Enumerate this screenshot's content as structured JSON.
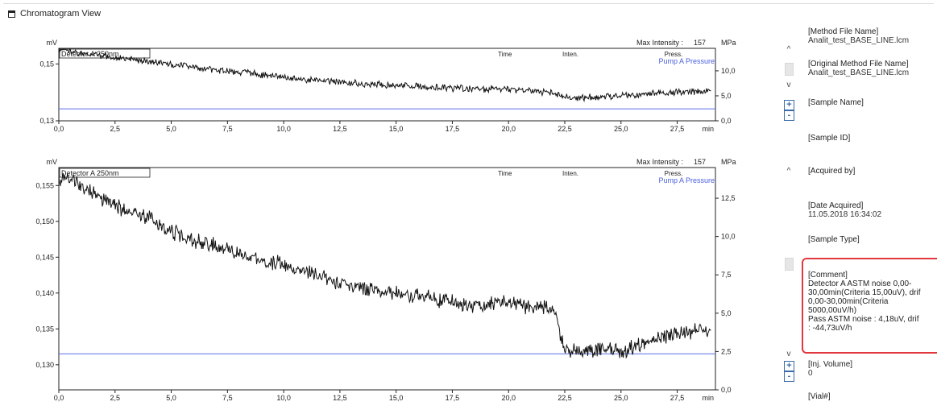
{
  "window": {
    "title": "Chromatogram View"
  },
  "chart_data": [
    {
      "type": "line",
      "legend": {
        "detector": "Detector A 250nm",
        "pump": "Pump A Pressure",
        "columns": [
          "Time",
          "Inten.",
          "Press."
        ]
      },
      "max_intensity_label": "Max Intensity :",
      "max_intensity_value": "157",
      "ylabel": "mV",
      "y2label": "MPa",
      "xlabel": "min",
      "xlim": [
        0,
        29.2
      ],
      "ylim": [
        0.13,
        0.1555
      ],
      "y2lim": [
        0,
        14.5
      ],
      "x_ticks": [
        "0,0",
        "2,5",
        "5,0",
        "7,5",
        "10,0",
        "12,5",
        "15,0",
        "17,5",
        "20,0",
        "22,5",
        "25,0",
        "27,5"
      ],
      "y_ticks": [
        "0,13",
        "0,15"
      ],
      "y_tick_values": [
        0.13,
        0.15
      ],
      "y2_ticks": [
        "0,0",
        "5,0",
        "10,0"
      ],
      "y2_tick_values": [
        0,
        5,
        10
      ],
      "series": [
        {
          "name": "Detector A 250nm",
          "color": "#111111",
          "x": [
            0,
            1,
            2,
            3,
            4,
            5,
            6,
            7,
            8,
            9,
            10,
            11,
            12,
            13,
            14,
            15,
            16,
            17,
            18,
            19,
            20,
            21,
            22,
            22.5,
            23,
            24,
            25,
            26,
            27,
            28,
            29
          ],
          "y": [
            0.155,
            0.1538,
            0.1527,
            0.1518,
            0.1507,
            0.1498,
            0.1488,
            0.148,
            0.1472,
            0.1462,
            0.1452,
            0.1445,
            0.144,
            0.1434,
            0.1428,
            0.1424,
            0.142,
            0.1417,
            0.1414,
            0.1412,
            0.141,
            0.1405,
            0.1399,
            0.1385,
            0.138,
            0.1384,
            0.1388,
            0.1393,
            0.1398,
            0.1402,
            0.1407
          ]
        },
        {
          "name": "Pump A Pressure",
          "color": "#5a6ee6",
          "x": [
            0,
            29.2
          ],
          "y2": [
            2.4,
            2.4
          ]
        }
      ]
    },
    {
      "type": "line",
      "legend": {
        "detector": "Detector A 250nm",
        "pump": "Pump A Pressure",
        "columns": [
          "Time",
          "Inten.",
          "Press."
        ]
      },
      "max_intensity_label": "Max Intensity :",
      "max_intensity_value": "157",
      "ylabel": "mV",
      "y2label": "MPa",
      "xlabel": "min",
      "xlim": [
        0,
        29.2
      ],
      "ylim": [
        0.1265,
        0.1575
      ],
      "y2lim": [
        0,
        14.5
      ],
      "x_ticks": [
        "0,0",
        "2,5",
        "5,0",
        "7,5",
        "10,0",
        "12,5",
        "15,0",
        "17,5",
        "20,0",
        "22,5",
        "25,0",
        "27,5"
      ],
      "y_ticks": [
        "0,130",
        "0,135",
        "0,140",
        "0,145",
        "0,150",
        "0,155"
      ],
      "y_tick_values": [
        0.13,
        0.135,
        0.14,
        0.145,
        0.15,
        0.155
      ],
      "y2_ticks": [
        "0,0",
        "2,5",
        "5,0",
        "7,5",
        "10,0",
        "12,5"
      ],
      "y2_tick_values": [
        0,
        2.5,
        5,
        7.5,
        10,
        12.5
      ],
      "series": [
        {
          "name": "Detector A 250nm",
          "color": "#111111",
          "x": [
            0,
            0.5,
            1,
            2,
            3,
            4,
            5,
            6,
            7,
            8,
            9,
            10,
            11,
            12,
            13,
            14,
            15,
            16,
            17,
            18,
            19,
            20,
            20.5,
            21,
            22,
            22.5,
            23,
            24,
            25,
            26,
            27,
            28,
            29
          ],
          "y": [
            0.1555,
            0.156,
            0.155,
            0.153,
            0.1515,
            0.1505,
            0.1485,
            0.1475,
            0.1465,
            0.1455,
            0.1445,
            0.144,
            0.143,
            0.1418,
            0.141,
            0.1405,
            0.14,
            0.1395,
            0.139,
            0.1385,
            0.1382,
            0.1392,
            0.1385,
            0.138,
            0.1378,
            0.132,
            0.1318,
            0.1322,
            0.1318,
            0.133,
            0.134,
            0.1345,
            0.135
          ]
        },
        {
          "name": "Pump A Pressure",
          "color": "#5a6ee6",
          "x": [
            0,
            29.2
          ],
          "y2": [
            2.35,
            2.35
          ]
        }
      ]
    }
  ],
  "info_panel": [
    {
      "label": "[Method File Name]",
      "value": "Analit_test_BASE_LINE.lcm"
    },
    {
      "label": "[Original Method File Name]",
      "value": "Analit_test_BASE_LINE.lcm"
    },
    {
      "label": "[Sample Name]",
      "value": ""
    },
    {
      "label": "[Sample ID]",
      "value": ""
    },
    {
      "label": "[Acquired by]",
      "value": ""
    },
    {
      "label": "[Date Acquired]",
      "value": "11.05.2018 16:34:02"
    },
    {
      "label": "[Sample Type]",
      "value": ""
    },
    {
      "label": "[Comment]",
      "lines": [
        "Detector A ASTM noise 0,00-",
        "30,00min(Criteria 15,00uV), drif",
        "0,00-30,00min(Criteria",
        "5000,00uV/h)",
        "Pass ASTM noise : 4,18uV, drif",
        ": -44,73uV/h"
      ]
    },
    {
      "label": "[Inj. Volume]",
      "value": "0"
    },
    {
      "label": "[Vial#]",
      "value": ""
    }
  ],
  "controls": {
    "up_arrow": "^",
    "down_arrow": "v",
    "zoom_in": "+",
    "zoom_out": "-"
  }
}
